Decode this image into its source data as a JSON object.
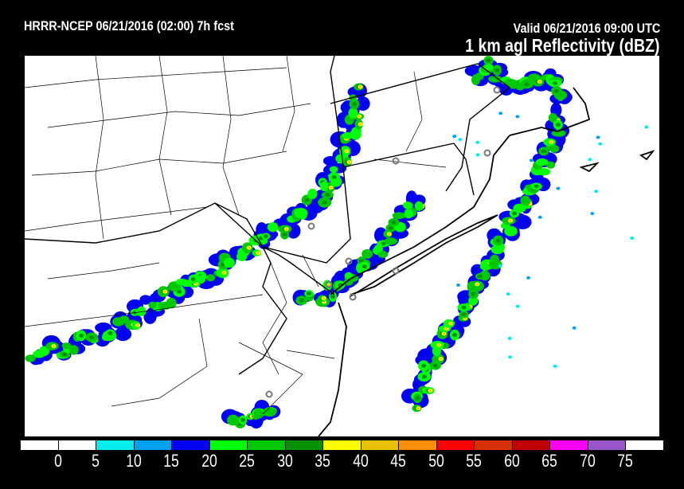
{
  "header": {
    "model_run": "HRRR-NCEP 06/21/2016 (02:00) 7h fcst",
    "valid": "Valid 06/21/2016 09:00 UTC",
    "field": "1 km agl Reflectivity (dBZ)"
  },
  "colorbar": {
    "colors": [
      "#ffffff",
      "#ffffff",
      "#00eded",
      "#00a0f5",
      "#0000f5",
      "#00ff00",
      "#00c800",
      "#009000",
      "#ffff00",
      "#e7c000",
      "#ff9000",
      "#ff0000",
      "#d63000",
      "#c00000",
      "#ff00ff",
      "#9955c9",
      "#ffffff"
    ],
    "labels": [
      "0",
      "5",
      "10",
      "15",
      "20",
      "25",
      "30",
      "35",
      "40",
      "45",
      "50",
      "55",
      "60",
      "65",
      "70",
      "75"
    ]
  }
}
